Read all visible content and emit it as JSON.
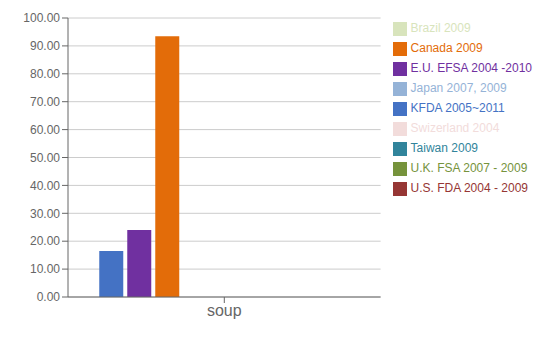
{
  "chart_data": {
    "type": "bar",
    "categories": [
      "soup"
    ],
    "series": [
      {
        "name": "KFDA 2005~2011",
        "color": "#4472C4",
        "values": [
          16.5
        ]
      },
      {
        "name": "E.U. EFSA 2004 -2010",
        "color": "#7030A0",
        "values": [
          24.0
        ]
      },
      {
        "name": "Canada 2009",
        "color": "#E36C09",
        "values": [
          93.5
        ]
      },
      {
        "name": "U.S. FDA 2004 - 2009",
        "color": "#963634",
        "values": [
          0
        ]
      },
      {
        "name": "U.K. FSA 2007 - 2009",
        "color": "#76933C",
        "values": [
          0
        ]
      },
      {
        "name": "Taiwan 2009",
        "color": "#31849B",
        "values": [
          0
        ]
      },
      {
        "name": "Japan 2007, 2009",
        "color": "#95B3D7",
        "values": [
          0
        ]
      },
      {
        "name": "Swizerland 2004",
        "color": "#F2DCDB",
        "values": [
          0
        ]
      },
      {
        "name": "Brazil 2009",
        "color": "#D8E4BC",
        "values": [
          0
        ]
      }
    ],
    "ylim": [
      0,
      100
    ],
    "yticks": [
      {
        "value": 0,
        "label": "0.00"
      },
      {
        "value": 10,
        "label": "10.00"
      },
      {
        "value": 20,
        "label": "20.00"
      },
      {
        "value": 30,
        "label": "30.00"
      },
      {
        "value": 40,
        "label": "40.00"
      },
      {
        "value": 50,
        "label": "50.00"
      },
      {
        "value": 60,
        "label": "60.00"
      },
      {
        "value": 70,
        "label": "70.00"
      },
      {
        "value": 80,
        "label": "80.00"
      },
      {
        "value": 90,
        "label": "90.00"
      },
      {
        "value": 100,
        "label": "100.00"
      }
    ],
    "grid": true,
    "legend": "right"
  }
}
